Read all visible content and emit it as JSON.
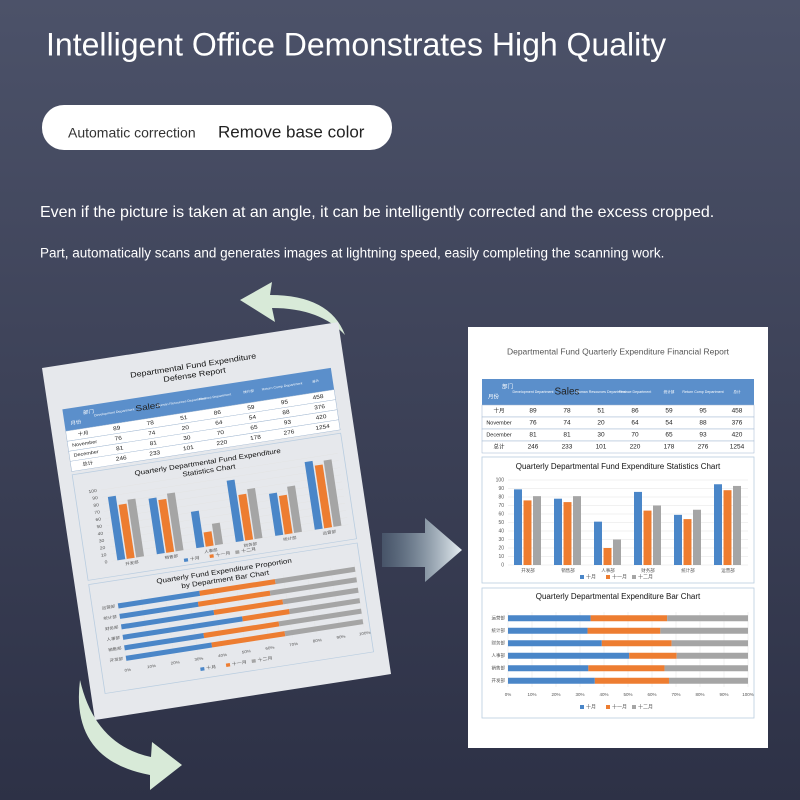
{
  "header": {
    "title": "Intelligent Office Demonstrates High Quality",
    "tags": [
      "Automatic correction",
      "Remove base color"
    ],
    "lines": [
      "Even if the picture is taken at an angle, it can be intelligently corrected and the excess cropped.",
      "Part, automatically scans and generates images at lightning speed, easily completing the scanning work."
    ]
  },
  "original_document": {
    "title_lines": [
      "Departmental Fund Expenditure",
      "Defense Report"
    ],
    "chart_title_lines": [
      "Quarterly Departmental Fund Expenditure",
      "Statistics Chart"
    ],
    "bar_chart_title_lines": [
      "Quarterly Fund Expenditure Proportion",
      "by Department Bar Chart"
    ]
  },
  "corrected_document": {
    "title": "Departmental Fund Quarterly Expenditure Financial Report",
    "chart_title": "Quarterly Departmental Fund Expenditure Statistics Chart",
    "bar_chart_title": "Quarterly Departmental Expenditure Bar Chart"
  },
  "table": {
    "corner": [
      "部门",
      "月份"
    ],
    "columns": [
      "Development Department",
      "Sales",
      "Human Resources Department",
      "Finance Department",
      "统计部",
      "Return Comp Department",
      "总计"
    ],
    "rows": [
      {
        "label": "十月",
        "values": [
          89,
          78,
          51,
          86,
          59,
          95,
          458
        ]
      },
      {
        "label": "November",
        "values": [
          76,
          74,
          20,
          64,
          54,
          88,
          376
        ]
      },
      {
        "label": "December",
        "values": [
          81,
          81,
          30,
          70,
          65,
          93,
          420
        ]
      },
      {
        "label": "总计",
        "values": [
          246,
          233,
          101,
          220,
          178,
          276,
          1254
        ]
      }
    ]
  },
  "chart": {
    "categories": [
      "开发部",
      "销售部",
      "人事部",
      "财务部",
      "统计部",
      "运营部"
    ],
    "series_names": [
      "十月",
      "十一月",
      "十二月"
    ],
    "colors": [
      "#4a86c8",
      "#ed7d31",
      "#a5a5a5"
    ],
    "ylim": [
      0,
      100
    ],
    "yticks": [
      0,
      10,
      20,
      30,
      40,
      50,
      60,
      70,
      80,
      90,
      100
    ],
    "xlim": [
      0,
      100
    ],
    "xticks": [
      {
        "value": 0,
        "label": "0%"
      },
      {
        "value": 10,
        "label": "10%"
      },
      {
        "value": 20,
        "label": "20%"
      },
      {
        "value": 30,
        "label": "30%"
      },
      {
        "value": 40,
        "label": "40%"
      },
      {
        "value": 50,
        "label": "50%"
      },
      {
        "value": 60,
        "label": "60%"
      },
      {
        "value": 70,
        "label": "70%"
      },
      {
        "value": 80,
        "label": "80%"
      },
      {
        "value": 90,
        "label": "90%"
      },
      {
        "value": 100,
        "label": "100%"
      }
    ]
  }
}
